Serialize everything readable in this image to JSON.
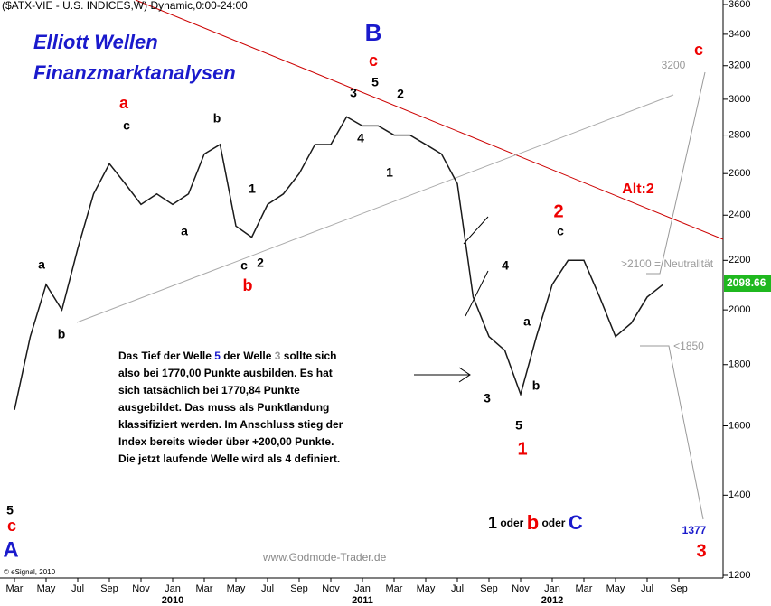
{
  "chart_data": {
    "type": "line",
    "title": "($ATX-VIE - U.S. INDICES,W) Dynamic,0:00-24:00",
    "x": [
      "2009-03",
      "2009-04",
      "2009-05",
      "2009-06",
      "2009-07",
      "2009-08",
      "2009-09",
      "2009-10",
      "2009-11",
      "2009-12",
      "2010-01",
      "2010-02",
      "2010-03",
      "2010-04",
      "2010-05",
      "2010-06",
      "2010-07",
      "2010-08",
      "2010-09",
      "2010-10",
      "2010-11",
      "2010-12",
      "2011-01",
      "2011-02",
      "2011-03",
      "2011-04",
      "2011-05",
      "2011-06",
      "2011-07",
      "2011-08",
      "2011-09",
      "2011-10",
      "2011-11",
      "2011-12",
      "2012-01",
      "2012-02",
      "2012-03",
      "2012-04",
      "2012-05",
      "2012-06",
      "2012-07",
      "2012-08"
    ],
    "series": [
      {
        "name": "$ATX-VIE",
        "color": "#1a1a1a",
        "values": [
          1650,
          1900,
          2100,
          2000,
          2250,
          2500,
          2650,
          2550,
          2450,
          2500,
          2450,
          2500,
          2700,
          2750,
          2350,
          2300,
          2450,
          2500,
          2600,
          2750,
          2750,
          2900,
          2850,
          2850,
          2800,
          2800,
          2750,
          2700,
          2550,
          2050,
          1900,
          1850,
          1700,
          1900,
          2100,
          2200,
          2200,
          2050,
          1900,
          1950,
          2050,
          2100
        ]
      }
    ],
    "log_scale": true,
    "ylim": [
      1200,
      3600
    ],
    "yticks": [
      1200,
      1400,
      1600,
      1800,
      2000,
      2200,
      2400,
      2600,
      2800,
      3000,
      3200,
      3400,
      3600
    ],
    "xticks": [
      {
        "value": "2009-03",
        "label": "Mar"
      },
      {
        "value": "2009-05",
        "label": "May"
      },
      {
        "value": "2009-07",
        "label": "Jul"
      },
      {
        "value": "2009-09",
        "label": "Sep"
      },
      {
        "value": "2009-11",
        "label": "Nov"
      },
      {
        "value": "2010-01",
        "label": "Jan"
      },
      {
        "value": "2010-03",
        "label": "Mar"
      },
      {
        "value": "2010-05",
        "label": "May"
      },
      {
        "value": "2010-07",
        "label": "Jul"
      },
      {
        "value": "2010-09",
        "label": "Sep"
      },
      {
        "value": "2010-11",
        "label": "Nov"
      },
      {
        "value": "2011-01",
        "label": "Jan"
      },
      {
        "value": "2011-03",
        "label": "Mar"
      },
      {
        "value": "2011-05",
        "label": "May"
      },
      {
        "value": "2011-07",
        "label": "Jul"
      },
      {
        "value": "2011-09",
        "label": "Sep"
      },
      {
        "value": "2011-11",
        "label": "Nov"
      },
      {
        "value": "2012-01",
        "label": "Jan"
      },
      {
        "value": "2012-03",
        "label": "Mar"
      },
      {
        "value": "2012-05",
        "label": "May"
      },
      {
        "value": "2012-07",
        "label": "Jul"
      },
      {
        "value": "2012-09",
        "label": "Sep"
      }
    ],
    "year_labels": [
      {
        "value": "2010-01",
        "label": "2010"
      },
      {
        "value": "2011-01",
        "label": "2011"
      },
      {
        "value": "2012-01",
        "label": "2012"
      }
    ],
    "last_price": {
      "value": 2098.66,
      "label": "2098.66"
    },
    "annotations": [
      "Elliott Wellen",
      "Finanzmarktanalysen",
      "B",
      "c",
      "5",
      "3",
      "2",
      "4",
      "1",
      "a",
      "c",
      "b",
      "a",
      "1",
      "c",
      "2",
      "b",
      "a",
      "b",
      "5",
      "c",
      "A",
      "4",
      "a",
      "b",
      "3",
      "5",
      "1",
      "2",
      "c",
      "Alt:2",
      "c",
      "3200",
      ">2100 = Neutralität",
      "<1850",
      "1377",
      "3"
    ],
    "note_lines": [
      [
        "Das Tief der Welle ",
        "5",
        " der Welle ",
        "3",
        " sollte sich"
      ],
      [
        "also bei 1770,00 Punkte ausbilden. Es hat"
      ],
      [
        "sich tatsächlich bei 1770,84 Punkte"
      ],
      [
        "ausgebildet. Das muss als Punktlandung"
      ],
      [
        "klassifiziert werden. Im Anschluss stieg der"
      ],
      [
        "Index bereits wieder über +200,00 Punkte."
      ],
      [
        "Die jetzt laufende Welle wird als 4 definiert."
      ]
    ],
    "alternatives": [
      "1",
      " oder ",
      "b",
      " oder ",
      "C"
    ],
    "watermark": "www.Godmode-Trader.de",
    "copyright": "© eSignal, 2010"
  }
}
